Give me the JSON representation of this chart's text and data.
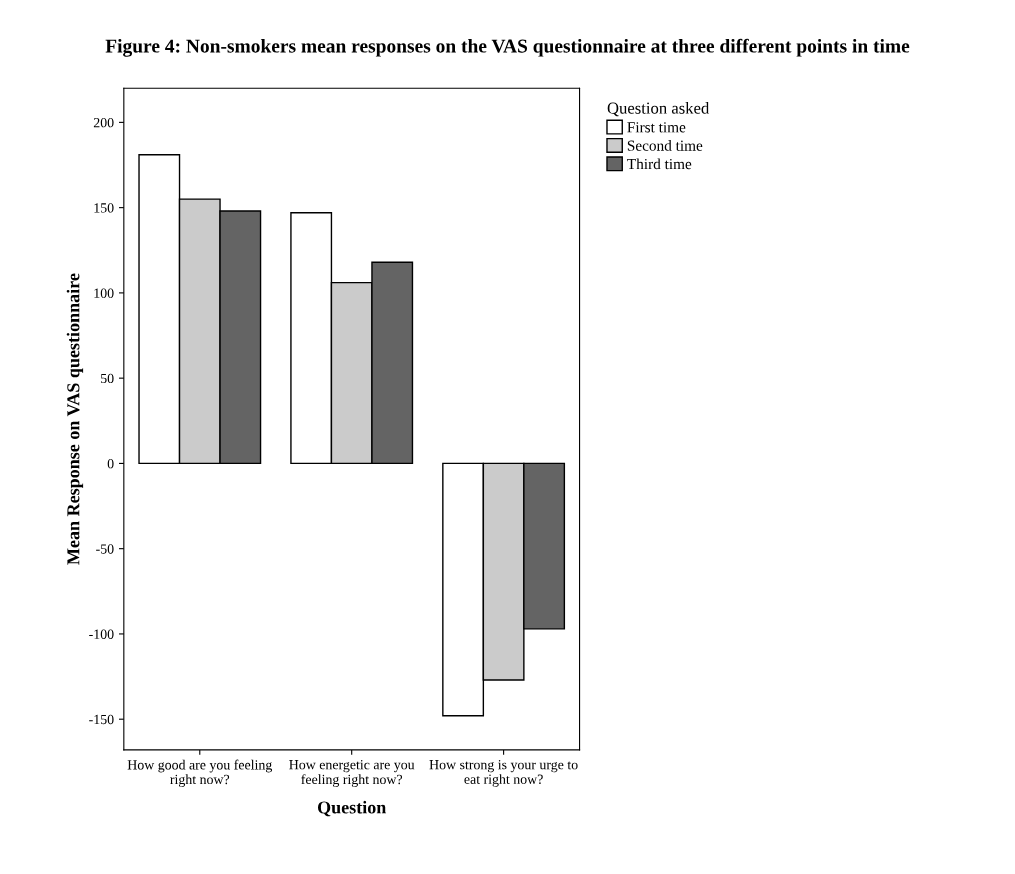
{
  "chart_data": {
    "type": "bar",
    "title": "Figure 4: Non-smokers mean responses on the VAS questionnaire at three different points in time",
    "xlabel": "Question",
    "ylabel": "Mean Response on VAS questionnaire",
    "legend_title": "Question asked",
    "categories": [
      "How good are you feeling\nright now?",
      "How energetic are you\nfeeling right now?",
      "How strong is your urge to\neat right now?"
    ],
    "series": [
      {
        "name": "First time",
        "color": "#ffffff",
        "values": [
          181,
          147,
          -148
        ]
      },
      {
        "name": "Second time",
        "color": "#cbcbcb",
        "values": [
          155,
          106,
          -127
        ]
      },
      {
        "name": "Third time",
        "color": "#646464",
        "values": [
          148,
          118,
          -97
        ]
      }
    ],
    "ylim": [
      -168,
      220
    ],
    "yticks": [
      -150,
      -100,
      -50,
      0,
      50,
      100,
      150,
      200
    ],
    "grid": false,
    "legend": "top right"
  }
}
